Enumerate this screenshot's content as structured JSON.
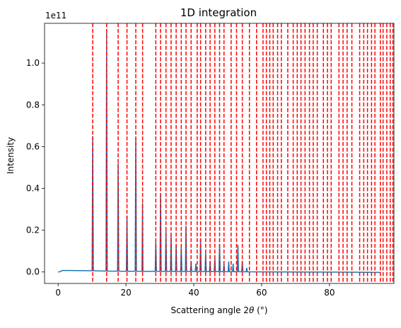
{
  "chart_data": {
    "type": "line",
    "title": "1D integration",
    "xlabel_prefix": "Scattering angle 2",
    "xlabel_theta": "θ",
    "xlabel_unit": " (°)",
    "ylabel": "Intensity",
    "y_offset_text": "1e11",
    "y_scale": 100000000000.0,
    "xlim": [
      -4,
      99
    ],
    "ylim": [
      -5500000000.0,
      119000000000.0
    ],
    "x_ticks": [
      0,
      20,
      40,
      60,
      80
    ],
    "y_ticks": [
      0.0,
      20000000000.0,
      40000000000.0,
      60000000000.0,
      80000000000.0,
      100000000000.0
    ],
    "y_tick_labels": [
      "0.0",
      "0.2",
      "0.4",
      "0.6",
      "0.8",
      "1.0"
    ],
    "series": [
      {
        "color": "#1f77b4",
        "baseline": [
          [
            0,
            0.0
          ],
          [
            0.5,
            100000000.0
          ],
          [
            1.2,
            700000000.0
          ],
          [
            3,
            700000000.0
          ],
          [
            10,
            600000000.0
          ],
          [
            15,
            400000000.0
          ],
          [
            25,
            300000000.0
          ],
          [
            40,
            200000000.0
          ],
          [
            55,
            100000000.0
          ],
          [
            70,
            0.0
          ],
          [
            85,
            -100000000.0
          ],
          [
            95,
            -200000000.0
          ]
        ],
        "peaks": [
          [
            10.2,
            65000000000.0
          ],
          [
            14.3,
            115000000000.0
          ],
          [
            17.7,
            52000000000.0
          ],
          [
            20.3,
            27000000000.0
          ],
          [
            22.9,
            64000000000.0
          ],
          [
            24.9,
            33000000000.0
          ],
          [
            28.8,
            15000000000.0
          ],
          [
            30.2,
            37000000000.0
          ],
          [
            31.8,
            20000000000.0
          ],
          [
            33.3,
            18000000000.0
          ],
          [
            34.8,
            13000000000.0
          ],
          [
            36.3,
            12000000000.0
          ],
          [
            37.7,
            22000000000.0
          ],
          [
            39.2,
            5000000000.0
          ],
          [
            40.6,
            4000000000.0
          ],
          [
            42.0,
            16000000000.0
          ],
          [
            43.5,
            9000000000.0
          ],
          [
            44.8,
            5000000000.0
          ],
          [
            46.2,
            7000000000.0
          ],
          [
            47.6,
            13000000000.0
          ],
          [
            48.9,
            4000000000.0
          ],
          [
            50.3,
            5000000000.0
          ],
          [
            51.6,
            4000000000.0
          ],
          [
            53.0,
            13000000000.0
          ],
          [
            54.3,
            5000000000.0
          ],
          [
            55.6,
            2000000000.0
          ]
        ]
      }
    ],
    "reference_lines": {
      "color": "#ff0000",
      "x": [
        10.2,
        14.3,
        17.7,
        20.3,
        22.9,
        24.9,
        28.8,
        30.2,
        31.8,
        33.3,
        34.8,
        36.3,
        37.7,
        39.2,
        41.0,
        42.0,
        43.5,
        44.8,
        46.2,
        47.6,
        48.9,
        51.0,
        52.6,
        54.3,
        56.4,
        58.5,
        60.4,
        61.4,
        62.4,
        63.4,
        64.7,
        65.8,
        67.7,
        69.3,
        70.5,
        71.6,
        72.8,
        74.1,
        75.2,
        76.4,
        78.2,
        79.4,
        80.5,
        82.8,
        84.0,
        85.2,
        86.6,
        88.9,
        90.1,
        91.2,
        92.4,
        93.4,
        95.0,
        95.8,
        96.9,
        97.9,
        98.7
      ]
    }
  }
}
